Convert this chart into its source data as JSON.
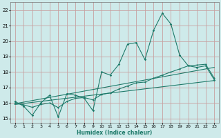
{
  "xlabel": "Humidex (Indice chaleur)",
  "bg_color": "#ceeaea",
  "line_color": "#1e7a6a",
  "grid_color": "#c8a0a0",
  "xlim": [
    -0.5,
    23.5
  ],
  "ylim": [
    14.7,
    22.5
  ],
  "yticks": [
    15,
    16,
    17,
    18,
    19,
    20,
    21,
    22
  ],
  "xticks": [
    0,
    1,
    2,
    3,
    4,
    5,
    6,
    7,
    8,
    9,
    10,
    11,
    12,
    13,
    14,
    15,
    16,
    17,
    18,
    19,
    20,
    21,
    22,
    23
  ],
  "series1_x": [
    0,
    1,
    2,
    3,
    4,
    5,
    6,
    7,
    8,
    9,
    10,
    11,
    12,
    13,
    14,
    15,
    16,
    17,
    18,
    19,
    20,
    21,
    22,
    23
  ],
  "series1_y": [
    16.1,
    15.8,
    15.2,
    16.0,
    16.5,
    15.1,
    16.6,
    16.5,
    16.3,
    15.5,
    18.0,
    17.8,
    18.5,
    19.8,
    19.9,
    18.8,
    20.7,
    21.8,
    21.1,
    19.1,
    18.4,
    18.3,
    18.4,
    17.5
  ],
  "series2_x": [
    0,
    1,
    2,
    3,
    4,
    5,
    6,
    7,
    8,
    9,
    10,
    11,
    12,
    13,
    14,
    15,
    16,
    17,
    18,
    19,
    20,
    21,
    22,
    23
  ],
  "series2_y": [
    16.0,
    15.88,
    15.72,
    15.9,
    16.0,
    15.7,
    16.1,
    16.3,
    16.35,
    16.2,
    16.55,
    16.65,
    16.9,
    17.1,
    17.3,
    17.35,
    17.6,
    17.8,
    18.0,
    18.2,
    18.4,
    18.45,
    18.5,
    17.6
  ],
  "series3_x": [
    0,
    23
  ],
  "series3_y": [
    15.9,
    17.45
  ],
  "series4_x": [
    0,
    23
  ],
  "series4_y": [
    15.95,
    18.3
  ]
}
